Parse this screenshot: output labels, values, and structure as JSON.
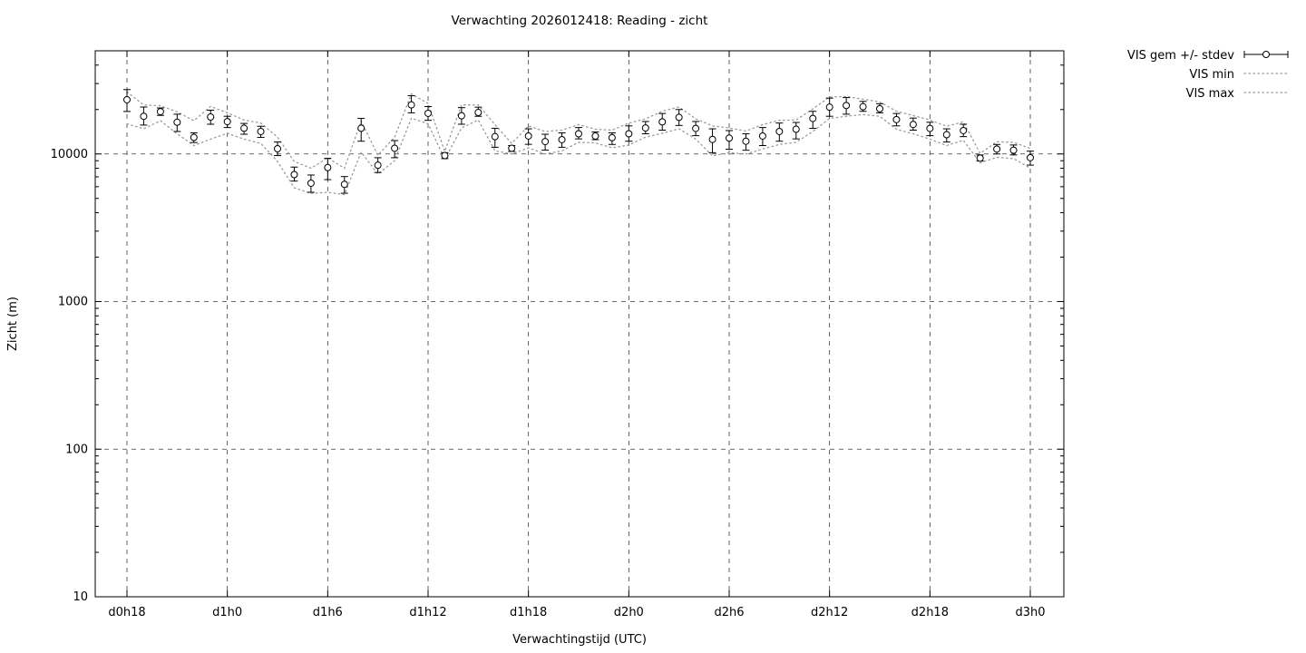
{
  "title": "Verwachting 2026012418: Reading - zicht",
  "legend": [
    {
      "label": "VIS gem +/- stdev",
      "type": "errorbar"
    },
    {
      "label": "VIS min",
      "type": "dotted"
    },
    {
      "label": "VIS max",
      "type": "dotted"
    }
  ],
  "colors": {
    "series": "#000000",
    "envelope": "#9a9a9a",
    "grid": "#3a3a3a",
    "background": "#ffffff"
  },
  "chart_data": {
    "type": "scatter",
    "subtype": "errorbar-with-minmax-envelope",
    "title": "Verwachting 2026012418: Reading - zicht",
    "xlabel": "Verwachtingstijd (UTC)",
    "ylabel": "Zicht (m)",
    "yscale": "log",
    "ylim": [
      10,
      50000
    ],
    "y_tick_values": [
      10,
      100,
      1000,
      10000
    ],
    "y_tick_labels": [
      "10",
      "100",
      "1000",
      "10000"
    ],
    "x_tick_labels": [
      "d0h18",
      "d1h0",
      "d1h6",
      "d1h12",
      "d1h18",
      "d2h0",
      "d2h6",
      "d2h12",
      "d2h18",
      "d3h0"
    ],
    "x_tick_interval_hours": 6,
    "grid": true,
    "legend_position": "top-right-outside",
    "series_names": [
      "VIS gem +/- stdev",
      "VIS min",
      "VIS max"
    ],
    "points": [
      {
        "t": "d0h18",
        "mean": 23300,
        "lo": 19400,
        "hi": 27300,
        "min": 16000,
        "max": 26300
      },
      {
        "t": "d0h19",
        "mean": 18000,
        "lo": 15700,
        "hi": 20800,
        "min": 14800,
        "max": 21500
      },
      {
        "t": "d0h20",
        "mean": 19350,
        "lo": 18250,
        "hi": 20500,
        "min": 16800,
        "max": 21200
      },
      {
        "t": "d0h21",
        "mean": 16400,
        "lo": 14200,
        "hi": 18600,
        "min": 13700,
        "max": 19300
      },
      {
        "t": "d0h22",
        "mean": 12950,
        "lo": 11950,
        "hi": 13900,
        "min": 11400,
        "max": 16800
      },
      {
        "t": "d0h23",
        "mean": 17800,
        "lo": 15900,
        "hi": 19800,
        "min": 12600,
        "max": 21000
      },
      {
        "t": "d1h0",
        "mean": 16560,
        "lo": 15100,
        "hi": 18000,
        "min": 13800,
        "max": 19000
      },
      {
        "t": "d1h1",
        "mean": 14930,
        "lo": 13600,
        "hi": 16100,
        "min": 12600,
        "max": 17000
      },
      {
        "t": "d1h2",
        "mean": 14200,
        "lo": 12950,
        "hi": 15400,
        "min": 11800,
        "max": 16200
      },
      {
        "t": "d1h3",
        "mean": 10850,
        "lo": 9750,
        "hi": 12050,
        "min": 8900,
        "max": 13000
      },
      {
        "t": "d1h4",
        "mean": 7250,
        "lo": 6550,
        "hi": 8150,
        "min": 5900,
        "max": 8900
      },
      {
        "t": "d1h5",
        "mean": 6340,
        "lo": 5500,
        "hi": 7200,
        "min": 5400,
        "max": 8000
      },
      {
        "t": "d1h6",
        "mean": 8090,
        "lo": 6700,
        "hi": 9340,
        "min": 5500,
        "max": 9400
      },
      {
        "t": "d1h7",
        "mean": 6230,
        "lo": 5420,
        "hi": 7030,
        "min": 5300,
        "max": 8000
      },
      {
        "t": "d1h8",
        "mean": 14930,
        "lo": 12200,
        "hi": 17420,
        "min": 10300,
        "max": 16700
      },
      {
        "t": "d1h9",
        "mean": 8390,
        "lo": 7490,
        "hi": 9430,
        "min": 7300,
        "max": 9800
      },
      {
        "t": "d1h10",
        "mean": 10930,
        "lo": 9430,
        "hi": 12320,
        "min": 9000,
        "max": 13000
      },
      {
        "t": "d1h11",
        "mean": 21500,
        "lo": 19000,
        "hi": 24800,
        "min": 17500,
        "max": 25500
      },
      {
        "t": "d1h12",
        "mean": 18850,
        "lo": 16900,
        "hi": 20950,
        "min": 16000,
        "max": 22000
      },
      {
        "t": "d1h13",
        "mean": 9750,
        "lo": 9300,
        "hi": 10200,
        "min": 9200,
        "max": 10400
      },
      {
        "t": "d1h14",
        "mean": 18150,
        "lo": 15900,
        "hi": 20600,
        "min": 15000,
        "max": 21500
      },
      {
        "t": "d1h15",
        "mean": 19100,
        "lo": 18000,
        "hi": 20750,
        "min": 17000,
        "max": 21500
      },
      {
        "t": "d1h16",
        "mean": 13100,
        "lo": 11100,
        "hi": 14930,
        "min": 10500,
        "max": 15800
      },
      {
        "t": "d1h17",
        "mean": 10930,
        "lo": 10400,
        "hi": 11400,
        "min": 10000,
        "max": 11800
      },
      {
        "t": "d1h18",
        "mean": 13230,
        "lo": 11620,
        "hi": 14800,
        "min": 11000,
        "max": 15500
      },
      {
        "t": "d1h19",
        "mean": 12130,
        "lo": 10620,
        "hi": 13600,
        "min": 10000,
        "max": 14200
      },
      {
        "t": "d1h20",
        "mean": 12500,
        "lo": 11100,
        "hi": 13900,
        "min": 10500,
        "max": 14500
      },
      {
        "t": "d1h21",
        "mean": 13700,
        "lo": 12650,
        "hi": 15100,
        "min": 12000,
        "max": 15800
      },
      {
        "t": "d1h22",
        "mean": 13230,
        "lo": 12500,
        "hi": 14100,
        "min": 11900,
        "max": 14700
      },
      {
        "t": "d1h23",
        "mean": 12900,
        "lo": 11600,
        "hi": 13900,
        "min": 11000,
        "max": 14500
      },
      {
        "t": "d2h0",
        "mean": 13700,
        "lo": 12200,
        "hi": 15500,
        "min": 11500,
        "max": 16200
      },
      {
        "t": "d2h1",
        "mean": 15000,
        "lo": 13700,
        "hi": 16600,
        "min": 13000,
        "max": 17300
      },
      {
        "t": "d2h2",
        "mean": 16500,
        "lo": 14500,
        "hi": 18800,
        "min": 13800,
        "max": 19500
      },
      {
        "t": "d2h3",
        "mean": 17700,
        "lo": 15600,
        "hi": 20000,
        "min": 14800,
        "max": 20800
      },
      {
        "t": "d2h4",
        "mean": 14900,
        "lo": 13300,
        "hi": 16600,
        "min": 12600,
        "max": 17300
      },
      {
        "t": "d2h5",
        "mean": 12550,
        "lo": 10200,
        "hi": 14800,
        "min": 9700,
        "max": 15500
      },
      {
        "t": "d2h6",
        "mean": 12800,
        "lo": 10760,
        "hi": 14400,
        "min": 10200,
        "max": 15000
      },
      {
        "t": "d2h7",
        "mean": 12200,
        "lo": 10600,
        "hi": 13700,
        "min": 10000,
        "max": 14300
      },
      {
        "t": "d2h8",
        "mean": 13230,
        "lo": 11400,
        "hi": 15100,
        "min": 10800,
        "max": 15800
      },
      {
        "t": "d2h9",
        "mean": 14200,
        "lo": 12200,
        "hi": 16200,
        "min": 11600,
        "max": 16900
      },
      {
        "t": "d2h10",
        "mean": 14700,
        "lo": 12650,
        "hi": 16350,
        "min": 12000,
        "max": 17000
      },
      {
        "t": "d2h11",
        "mean": 17400,
        "lo": 14900,
        "hi": 19450,
        "min": 14200,
        "max": 20200
      },
      {
        "t": "d2h12",
        "mean": 20750,
        "lo": 18000,
        "hi": 23900,
        "min": 17400,
        "max": 24300
      },
      {
        "t": "d2h13",
        "mean": 21300,
        "lo": 18600,
        "hi": 24100,
        "min": 18000,
        "max": 24500
      },
      {
        "t": "d2h14",
        "mean": 20900,
        "lo": 19450,
        "hi": 22700,
        "min": 18500,
        "max": 23500
      },
      {
        "t": "d2h15",
        "mean": 20250,
        "lo": 19000,
        "hi": 21900,
        "min": 18000,
        "max": 22500
      },
      {
        "t": "d2h16",
        "mean": 17100,
        "lo": 15500,
        "hi": 18800,
        "min": 14700,
        "max": 19500
      },
      {
        "t": "d2h17",
        "mean": 15850,
        "lo": 14500,
        "hi": 17500,
        "min": 13700,
        "max": 18200
      },
      {
        "t": "d2h18",
        "mean": 14900,
        "lo": 13300,
        "hi": 16400,
        "min": 12600,
        "max": 17000
      },
      {
        "t": "d2h19",
        "mean": 13500,
        "lo": 12050,
        "hi": 14800,
        "min": 11400,
        "max": 15400
      },
      {
        "t": "d2h20",
        "mean": 14400,
        "lo": 13100,
        "hi": 15900,
        "min": 12400,
        "max": 16500
      },
      {
        "t": "d2h21",
        "mean": 9370,
        "lo": 8950,
        "hi": 9850,
        "min": 8700,
        "max": 10100
      },
      {
        "t": "d2h22",
        "mean": 10800,
        "lo": 10000,
        "hi": 11600,
        "min": 9500,
        "max": 12100
      },
      {
        "t": "d2h23",
        "mean": 10600,
        "lo": 9850,
        "hi": 11500,
        "min": 9300,
        "max": 12000
      },
      {
        "t": "d3h0",
        "mean": 9440,
        "lo": 8400,
        "hi": 10450,
        "min": 8000,
        "max": 10900
      }
    ]
  }
}
